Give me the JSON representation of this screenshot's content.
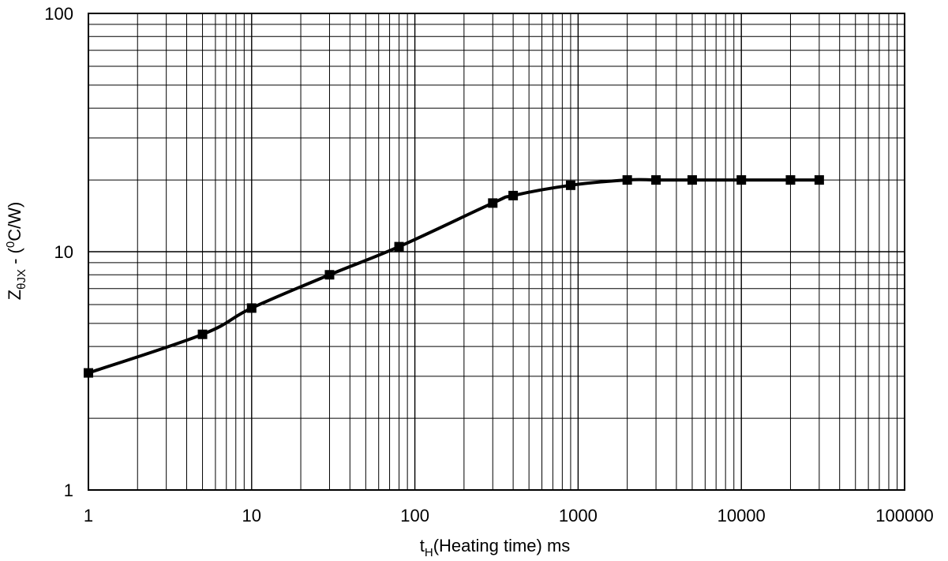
{
  "chart_data": {
    "type": "line",
    "xscale": "log",
    "yscale": "log",
    "xlim": [
      1,
      100000
    ],
    "ylim": [
      1,
      100
    ],
    "grid": true,
    "xlabel": {
      "main": "t",
      "sub": "H",
      "rest": "(Heating time) ms"
    },
    "ylabel": {
      "main": "Z",
      "sub": "θJX",
      "mid": " - (",
      "sup": "0",
      "rest": "C/W)"
    },
    "x_ticks": [
      "1",
      "10",
      "100",
      "1000",
      "10000",
      "100000"
    ],
    "y_ticks": [
      "1",
      "10",
      "100"
    ],
    "series": [
      {
        "x": [
          1,
          5,
          10,
          30,
          80,
          300,
          400,
          900,
          2000,
          3000,
          5000,
          10000,
          20000,
          30000
        ],
        "y": [
          3.1,
          4.5,
          5.8,
          8.0,
          10.5,
          16.0,
          17.2,
          19.0,
          20.0,
          20.0,
          20.0,
          20.0,
          20.0,
          20.0
        ],
        "color": "#000000",
        "marker": "square"
      }
    ]
  }
}
